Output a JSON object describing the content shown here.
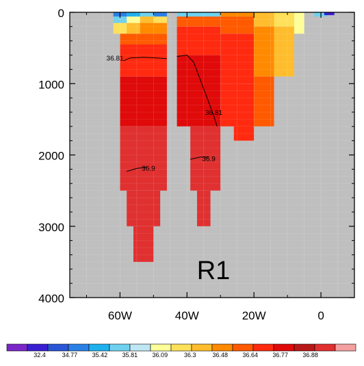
{
  "chart_data": {
    "type": "heatmap",
    "panel_label": "R1",
    "x_axis": {
      "range": [
        -75,
        10
      ],
      "ticks": [
        -60,
        -40,
        -20,
        0
      ],
      "tick_labels": [
        "60W",
        "40W",
        "20W",
        "0"
      ]
    },
    "y_axis": {
      "range": [
        0,
        4000
      ],
      "inverted": true,
      "ticks": [
        0,
        1000,
        2000,
        3000,
        4000
      ],
      "tick_labels": [
        "0",
        "1000",
        "2000",
        "3000",
        "4000"
      ]
    },
    "background_color": "#bfbfbf",
    "colorbar": {
      "labels": [
        "32.4",
        "34.77",
        "35.42",
        "35.81",
        "36.09",
        "36.3",
        "36.48",
        "36.64",
        "36.77",
        "36.88"
      ],
      "colors": [
        "#7a27c8",
        "#3a1fd2",
        "#2a55d6",
        "#2b80e6",
        "#1fb0ee",
        "#6fd1ef",
        "#bfe6f3",
        "#ffff9a",
        "#ffe05a",
        "#ffbd2e",
        "#ff8a00",
        "#ff5a00",
        "#ff2a10",
        "#e00a0a",
        "#b81818",
        "#e03030",
        "#f4a0a0"
      ]
    },
    "field": [
      {
        "x": [
          -62,
          -58
        ],
        "y": [
          0,
          60
        ],
        "color": "#2b80e6"
      },
      {
        "x": [
          -62,
          -58
        ],
        "y": [
          60,
          150
        ],
        "color": "#6fd1ef"
      },
      {
        "x": [
          -62,
          -58
        ],
        "y": [
          150,
          300
        ],
        "color": "#ffe05a"
      },
      {
        "x": [
          -58,
          -54
        ],
        "y": [
          0,
          60
        ],
        "color": "#1fb0ee"
      },
      {
        "x": [
          -58,
          -54
        ],
        "y": [
          60,
          150
        ],
        "color": "#ffff9a"
      },
      {
        "x": [
          -58,
          -54
        ],
        "y": [
          150,
          300
        ],
        "color": "#ffbd2e"
      },
      {
        "x": [
          -54,
          -50
        ],
        "y": [
          0,
          60
        ],
        "color": "#6fd1ef"
      },
      {
        "x": [
          -54,
          -50
        ],
        "y": [
          60,
          150
        ],
        "color": "#ffbd2e"
      },
      {
        "x": [
          -54,
          -50
        ],
        "y": [
          150,
          300
        ],
        "color": "#ff8a00"
      },
      {
        "x": [
          -50,
          -46
        ],
        "y": [
          0,
          60
        ],
        "color": "#2b80e6"
      },
      {
        "x": [
          -50,
          -46
        ],
        "y": [
          60,
          150
        ],
        "color": "#ffe05a"
      },
      {
        "x": [
          -50,
          -46
        ],
        "y": [
          150,
          300
        ],
        "color": "#ff8a00"
      },
      {
        "x": [
          -60,
          -46
        ],
        "y": [
          300,
          450
        ],
        "color": "#ff5a00"
      },
      {
        "x": [
          -60,
          -46
        ],
        "y": [
          450,
          900
        ],
        "color": "#ff2a10"
      },
      {
        "x": [
          -60,
          -46
        ],
        "y": [
          900,
          1600
        ],
        "color": "#e00a0a"
      },
      {
        "x": [
          -60,
          -46
        ],
        "y": [
          1600,
          2500
        ],
        "color": "#e03030"
      },
      {
        "x": [
          -58,
          -48
        ],
        "y": [
          2500,
          3000
        ],
        "color": "#e03030"
      },
      {
        "x": [
          -56,
          -50
        ],
        "y": [
          3000,
          3500
        ],
        "color": "#e03030"
      },
      {
        "x": [
          -43,
          -30
        ],
        "y": [
          0,
          60
        ],
        "color": "#6fd1ef"
      },
      {
        "x": [
          -43,
          -30
        ],
        "y": [
          60,
          200
        ],
        "color": "#ff5a00"
      },
      {
        "x": [
          -43,
          -30
        ],
        "y": [
          200,
          600
        ],
        "color": "#ff2a10"
      },
      {
        "x": [
          -43,
          -30
        ],
        "y": [
          600,
          1600
        ],
        "color": "#e00a0a"
      },
      {
        "x": [
          -39,
          -30
        ],
        "y": [
          1600,
          2500
        ],
        "color": "#e03030"
      },
      {
        "x": [
          -37,
          -33
        ],
        "y": [
          2500,
          3000
        ],
        "color": "#e03030"
      },
      {
        "x": [
          -30,
          -20
        ],
        "y": [
          0,
          60
        ],
        "color": "#ff8a00"
      },
      {
        "x": [
          -30,
          -20
        ],
        "y": [
          60,
          300
        ],
        "color": "#ff5a00"
      },
      {
        "x": [
          -30,
          -20
        ],
        "y": [
          300,
          1000
        ],
        "color": "#ff2a10"
      },
      {
        "x": [
          -30,
          -24
        ],
        "y": [
          1000,
          1600
        ],
        "color": "#ff2a10"
      },
      {
        "x": [
          -26,
          -20
        ],
        "y": [
          1000,
          1800
        ],
        "color": "#ff2a10"
      },
      {
        "x": [
          -20,
          -14
        ],
        "y": [
          0,
          200
        ],
        "color": "#ffbd2e"
      },
      {
        "x": [
          -20,
          -14
        ],
        "y": [
          200,
          900
        ],
        "color": "#ff8a00"
      },
      {
        "x": [
          -20,
          -14
        ],
        "y": [
          900,
          1600
        ],
        "color": "#ff5a00"
      },
      {
        "x": [
          -14,
          -8
        ],
        "y": [
          0,
          200
        ],
        "color": "#ffe05a"
      },
      {
        "x": [
          -14,
          -8
        ],
        "y": [
          200,
          600
        ],
        "color": "#ffbd2e"
      },
      {
        "x": [
          -14,
          -8
        ],
        "y": [
          600,
          900
        ],
        "color": "#ffbd2e"
      },
      {
        "x": [
          -8,
          -5
        ],
        "y": [
          0,
          300
        ],
        "color": "#ffff9a"
      },
      {
        "x": [
          -2,
          2
        ],
        "y": [
          0,
          60
        ],
        "color": "#6fd1ef"
      },
      {
        "x": [
          1,
          4
        ],
        "y": [
          0,
          40
        ],
        "color": "#3a1fd2"
      }
    ],
    "contours": [
      {
        "label": "36.81",
        "x": [
          -59,
          -57,
          -53,
          -49,
          -46
        ],
        "y": [
          680,
          640,
          630,
          640,
          650
        ],
        "label_at": [
          -61.5,
          640
        ]
      },
      {
        "label": "36.81",
        "x": [
          -43,
          -40,
          -38,
          -36,
          -34,
          -32,
          -31
        ],
        "y": [
          620,
          600,
          700,
          950,
          1200,
          1450,
          1600
        ],
        "label_at": [
          -32,
          1400
        ]
      },
      {
        "label": "36.9",
        "x": [
          -58,
          -55,
          -52
        ],
        "y": [
          2230,
          2190,
          2170
        ],
        "label_at": [
          -51.5,
          2180
        ]
      },
      {
        "label": "36.9",
        "x": [
          -39,
          -36,
          -33.5
        ],
        "y": [
          2060,
          2030,
          2030
        ],
        "label_at": [
          -33.5,
          2050
        ]
      }
    ]
  }
}
